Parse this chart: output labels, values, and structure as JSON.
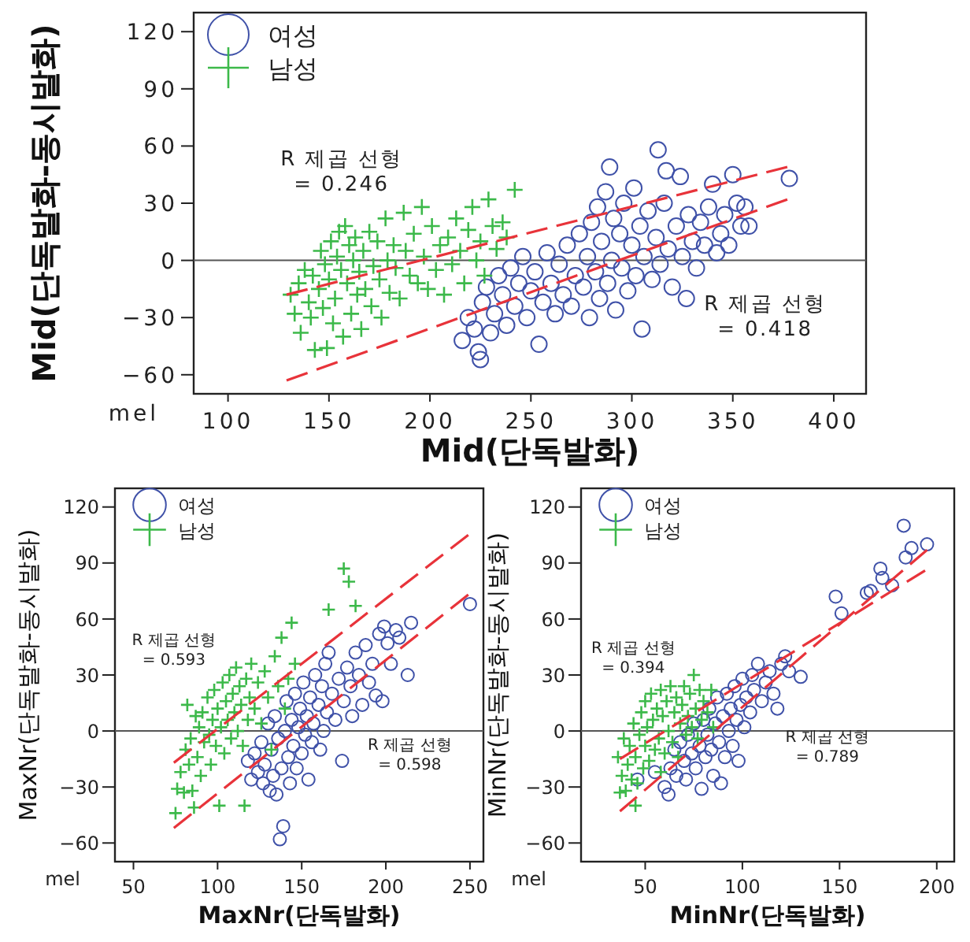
{
  "chart_data": [
    {
      "type": "scatter",
      "xlabel": "Mid(단독발화)",
      "ylabel": "Mid(단독발화-동시발화)",
      "xlim": [
        83,
        416
      ],
      "ylim": [
        -70,
        130
      ],
      "xticks": [
        100,
        150,
        200,
        250,
        300,
        350,
        400
      ],
      "yticks": [
        -60,
        -30,
        0,
        30,
        60,
        90,
        120
      ],
      "legend": "top left",
      "ref_lines": [
        {
          "axis": "y",
          "value": 0,
          "color": "#555555"
        }
      ],
      "annotations": [
        "R 제곱 선형\n= 0.246",
        "R 제곱 선형\n= 0.418",
        "mel"
      ],
      "series": [
        {
          "name": "여성",
          "type": "scatter",
          "marker": "circle",
          "color": "#3f51a8",
          "x": [
            216,
            219,
            222,
            224,
            225,
            226,
            228,
            230,
            232,
            234,
            236,
            238,
            240,
            242,
            244,
            246,
            248,
            250,
            252,
            254,
            256,
            258,
            260,
            262,
            264,
            266,
            268,
            270,
            272,
            274,
            276,
            278,
            279,
            280,
            282,
            283,
            284,
            285,
            287,
            288,
            289,
            290,
            291,
            292,
            294,
            295,
            296,
            298,
            300,
            301,
            302,
            304,
            305,
            306,
            308,
            310,
            312,
            313,
            314,
            316,
            317,
            318,
            320,
            322,
            324,
            325,
            327,
            328,
            330,
            332,
            334,
            336,
            338,
            340,
            342,
            344,
            346,
            348,
            350,
            352,
            354,
            356,
            358,
            378
          ],
          "values": [
            -42,
            -30,
            -36,
            -48,
            -52,
            -22,
            -14,
            -38,
            -28,
            -8,
            -18,
            -34,
            -4,
            -24,
            -12,
            2,
            -30,
            -16,
            -6,
            -44,
            -22,
            4,
            -12,
            -28,
            -2,
            -18,
            8,
            -24,
            -8,
            14,
            -14,
            2,
            -30,
            20,
            -6,
            28,
            -20,
            10,
            36,
            -12,
            49,
            0,
            22,
            -26,
            14,
            -4,
            30,
            -16,
            8,
            38,
            -8,
            18,
            -36,
            2,
            26,
            -10,
            12,
            58,
            -2,
            30,
            47,
            6,
            -14,
            18,
            44,
            2,
            -20,
            24,
            10,
            -4,
            20,
            8,
            28,
            40,
            4,
            14,
            24,
            8,
            45,
            30,
            18,
            28,
            18,
            43
          ]
        },
        {
          "name": "남성",
          "type": "scatter",
          "marker": "cross",
          "color": "#3cb94a",
          "x": [
            131,
            133,
            135,
            136,
            138,
            140,
            141,
            142,
            143,
            145,
            146,
            147,
            148,
            149,
            150,
            151,
            152,
            153,
            154,
            155,
            156,
            157,
            158,
            159,
            160,
            161,
            162,
            163,
            164,
            165,
            166,
            167,
            168,
            170,
            171,
            172,
            174,
            175,
            176,
            178,
            179,
            180,
            182,
            183,
            185,
            187,
            188,
            190,
            192,
            194,
            196,
            197,
            199,
            201,
            203,
            205,
            207,
            209,
            211,
            213,
            215,
            217,
            219,
            221,
            223,
            225,
            227,
            229,
            231,
            233,
            236,
            238,
            242
          ],
          "values": [
            -18,
            -28,
            -12,
            -38,
            -5,
            -22,
            -30,
            -8,
            -47,
            -15,
            5,
            -25,
            -2,
            -46,
            -10,
            10,
            -33,
            -20,
            2,
            15,
            -5,
            -40,
            18,
            -12,
            8,
            -28,
            0,
            12,
            -18,
            -6,
            -36,
            5,
            -15,
            15,
            -24,
            -3,
            10,
            -10,
            -30,
            22,
            0,
            -17,
            8,
            -4,
            -20,
            25,
            5,
            -8,
            14,
            -12,
            28,
            2,
            -15,
            18,
            -5,
            8,
            -18,
            12,
            -2,
            22,
            5,
            -12,
            16,
            28,
            0,
            10,
            -8,
            32,
            18,
            6,
            20,
            12,
            37
          ]
        },
        {
          "type": "line",
          "line_style": "dashed",
          "color": "#e8333a",
          "x": [
            129,
            377
          ],
          "values": [
            -18,
            49
          ]
        },
        {
          "type": "line",
          "line_style": "dashed",
          "color": "#e8333a",
          "x": [
            129,
            377
          ],
          "values": [
            -63,
            32
          ]
        }
      ]
    },
    {
      "type": "scatter",
      "xlabel": "MaxNr(단독발화)",
      "ylabel": "MaxNr(단독발화-동시발화)",
      "xlim": [
        39,
        258
      ],
      "ylim": [
        -70,
        130
      ],
      "xticks": [
        50,
        100,
        150,
        200,
        250
      ],
      "yticks": [
        -60,
        -30,
        0,
        30,
        60,
        90,
        120
      ],
      "legend": "top left",
      "ref_lines": [
        {
          "axis": "y",
          "value": 0,
          "color": "#555555"
        }
      ],
      "annotations": [
        "R 제곱 선형\n= 0.593",
        "R 제곱 선형\n= 0.598",
        "mel"
      ],
      "series": [
        {
          "name": "여성",
          "type": "scatter",
          "marker": "circle",
          "color": "#3f51a8",
          "x": [
            118,
            120,
            122,
            124,
            126,
            127,
            128,
            130,
            131,
            132,
            133,
            134,
            135,
            136,
            137,
            138,
            139,
            140,
            141,
            142,
            143,
            144,
            145,
            146,
            147,
            148,
            149,
            150,
            151,
            152,
            153,
            154,
            155,
            156,
            157,
            158,
            160,
            161,
            162,
            163,
            164,
            165,
            166,
            168,
            170,
            172,
            174,
            175,
            177,
            179,
            180,
            182,
            184,
            186,
            188,
            190,
            192,
            194,
            196,
            198,
            199,
            201,
            203,
            206,
            208,
            213,
            215,
            250
          ],
          "values": [
            -16,
            -26,
            -12,
            -22,
            -6,
            -28,
            -18,
            4,
            -32,
            -10,
            -24,
            8,
            -34,
            -4,
            -58,
            -20,
            -51,
            0,
            16,
            -14,
            -28,
            6,
            -8,
            20,
            -20,
            2,
            12,
            -12,
            26,
            -2,
            8,
            -26,
            18,
            -6,
            4,
            30,
            14,
            -10,
            24,
            0,
            36,
            10,
            42,
            20,
            6,
            28,
            -16,
            16,
            34,
            24,
            8,
            42,
            30,
            14,
            46,
            26,
            36,
            19,
            52,
            16,
            56,
            47,
            36,
            54,
            50,
            30,
            58,
            68
          ]
        },
        {
          "name": "남성",
          "type": "scatter",
          "marker": "cross",
          "color": "#3cb94a",
          "x": [
            75,
            76,
            78,
            80,
            81,
            82,
            83,
            84,
            85,
            86,
            87,
            88,
            89,
            90,
            91,
            92,
            94,
            95,
            96,
            97,
            98,
            99,
            100,
            101,
            102,
            103,
            104,
            105,
            106,
            107,
            108,
            109,
            110,
            111,
            112,
            113,
            114,
            115,
            116,
            117,
            118,
            119,
            120,
            122,
            124,
            126,
            128,
            130,
            132,
            134,
            136,
            138,
            140,
            142,
            144,
            146,
            166,
            175,
            178,
            182
          ],
          "values": [
            -44,
            -31,
            -22,
            -33,
            -10,
            14,
            -18,
            -4,
            -32,
            -41,
            8,
            -14,
            2,
            -24,
            10,
            -6,
            18,
            -2,
            -18,
            6,
            22,
            -8,
            12,
            -40,
            2,
            26,
            -12,
            16,
            6,
            30,
            -4,
            20,
            10,
            34,
            0,
            24,
            14,
            -8,
            -40,
            28,
            6,
            18,
            36,
            12,
            26,
            4,
            32,
            18,
            -10,
            40,
            24,
            50,
            12,
            28,
            58,
            36,
            65,
            87,
            80,
            67
          ]
        },
        {
          "type": "line",
          "line_style": "dashed",
          "color": "#e8333a",
          "x": [
            74,
            249
          ],
          "values": [
            -17,
            105
          ]
        },
        {
          "type": "line",
          "line_style": "dashed",
          "color": "#e8333a",
          "x": [
            74,
            249
          ],
          "values": [
            -52,
            73
          ]
        }
      ]
    },
    {
      "type": "scatter",
      "xlabel": "MinNr(단독발화)",
      "ylabel": "MinNr(단독발화-동시발화)",
      "xlim": [
        17,
        209
      ],
      "ylim": [
        -70,
        130
      ],
      "xticks": [
        50,
        100,
        150,
        200
      ],
      "yticks": [
        -60,
        -30,
        0,
        30,
        60,
        90,
        120
      ],
      "legend": "top left",
      "ref_lines": [
        {
          "axis": "y",
          "value": 0,
          "color": "#555555"
        }
      ],
      "annotations": [
        "R 제곱 선형\n= 0.394",
        "R 제곱 선형\n= 0.789",
        "mel"
      ],
      "series": [
        {
          "name": "여성",
          "type": "scatter",
          "marker": "circle",
          "color": "#3f51a8",
          "x": [
            46,
            55,
            60,
            62,
            63,
            65,
            66,
            68,
            70,
            71,
            72,
            74,
            75,
            76,
            78,
            79,
            80,
            81,
            82,
            83,
            84,
            85,
            86,
            87,
            88,
            89,
            90,
            91,
            92,
            93,
            94,
            95,
            96,
            97,
            98,
            99,
            100,
            101,
            102,
            104,
            105,
            106,
            108,
            110,
            112,
            114,
            116,
            118,
            120,
            122,
            124,
            130,
            148,
            151,
            164,
            166,
            171,
            172,
            177,
            183,
            184,
            187,
            195
          ],
          "values": [
            -26,
            -22,
            -30,
            -34,
            -20,
            -10,
            -24,
            -6,
            -16,
            -26,
            -2,
            -12,
            4,
            -20,
            -8,
            -31,
            6,
            -14,
            -2,
            12,
            -10,
            -24,
            4,
            18,
            -6,
            -28,
            8,
            -14,
            20,
            0,
            12,
            -8,
            24,
            6,
            -16,
            14,
            28,
            2,
            18,
            10,
            30,
            22,
            36,
            16,
            26,
            32,
            20,
            12,
            36,
            40,
            32,
            29,
            72,
            63,
            74,
            75,
            87,
            82,
            78,
            110,
            93,
            98,
            100
          ]
        },
        {
          "name": "남성",
          "type": "scatter",
          "marker": "cross",
          "color": "#3cb94a",
          "x": [
            36,
            37,
            38,
            39,
            40,
            41,
            42,
            43,
            44,
            45,
            45,
            46,
            47,
            48,
            49,
            50,
            50,
            51,
            52,
            53,
            54,
            55,
            56,
            57,
            58,
            58,
            59,
            60,
            61,
            62,
            63,
            64,
            65,
            66,
            67,
            68,
            69,
            70,
            71,
            72,
            73,
            74,
            75,
            76,
            77,
            78,
            79,
            80,
            82,
            84,
            85
          ],
          "values": [
            -14,
            -33,
            -24,
            -4,
            -32,
            -18,
            -8,
            -26,
            4,
            -40,
            -14,
            -28,
            -2,
            10,
            -20,
            -8,
            16,
            2,
            -16,
            20,
            6,
            -10,
            12,
            -4,
            22,
            -22,
            8,
            -12,
            16,
            0,
            24,
            -6,
            10,
            18,
            -14,
            4,
            14,
            24,
            -2,
            8,
            20,
            2,
            30,
            12,
            -4,
            22,
            6,
            16,
            10,
            22,
            2
          ]
        },
        {
          "type": "line",
          "line_style": "dashed",
          "color": "#e8333a",
          "x": [
            37,
            195
          ],
          "values": [
            -43,
            97
          ]
        },
        {
          "type": "line",
          "line_style": "dashed",
          "color": "#e8333a",
          "x": [
            37,
            194
          ],
          "values": [
            -15,
            86
          ]
        }
      ]
    }
  ]
}
